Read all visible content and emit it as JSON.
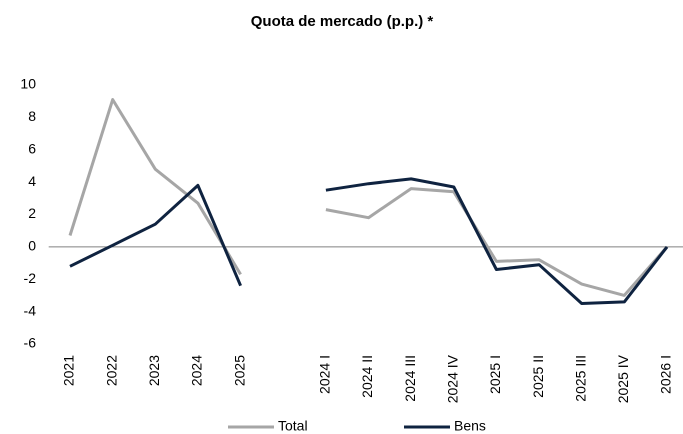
{
  "chart_data": {
    "type": "line",
    "title": "Quota de mercado (p.p.) *",
    "categories": [
      "2021",
      "2022",
      "2023",
      "2024",
      "2025",
      null,
      "2024 I",
      "2024 II",
      "2024 III",
      "2024 IV",
      "2025 I",
      "2025 II",
      "2025 III",
      "2025 IV",
      "2026 I"
    ],
    "series": [
      {
        "name": "Total",
        "color": "#a6a6a6",
        "values": [
          0.7,
          9.1,
          4.8,
          2.7,
          -1.7,
          null,
          2.3,
          1.8,
          3.6,
          3.4,
          -0.9,
          -0.8,
          -2.3,
          -3.0,
          0.0
        ]
      },
      {
        "name": "Bens",
        "color": "#0f2340",
        "values": [
          -1.2,
          0.1,
          1.4,
          3.8,
          -2.4,
          null,
          3.5,
          3.9,
          4.2,
          3.7,
          -1.4,
          -1.1,
          -3.5,
          -3.4,
          0.0
        ]
      }
    ],
    "ylim": [
      -6,
      10
    ],
    "yticks": [
      -6,
      -4,
      -2,
      0,
      2,
      4,
      6,
      8,
      10
    ],
    "legend": "bottom"
  }
}
